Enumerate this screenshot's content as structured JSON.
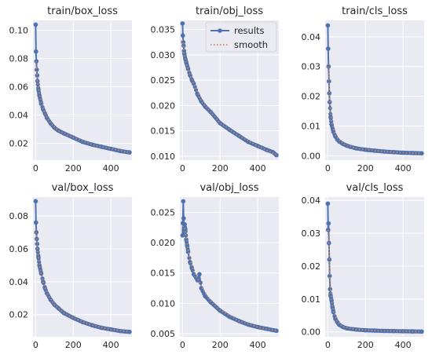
{
  "legend": {
    "results_label": "results",
    "smooth_label": "smooth"
  },
  "colors": {
    "background": "#eaeaf2",
    "grid": "#ffffff",
    "results": "#4c72b0",
    "smooth": "#dd8452"
  },
  "chart_data": [
    {
      "type": "line",
      "title": "train/box_loss",
      "xlim": [
        -14,
        512
      ],
      "ylim": [
        0.008,
        0.107
      ],
      "xticks": [
        0,
        200,
        400
      ],
      "xtick_labels": [
        "0",
        "200",
        "400"
      ],
      "yticks": [
        0.02,
        0.04,
        0.06,
        0.08,
        0.1
      ],
      "ytick_labels": [
        "0.02",
        "0.04",
        "0.06",
        "0.08",
        "0.10"
      ],
      "series": [
        {
          "name": "results",
          "x": [
            0,
            2,
            4,
            6,
            8,
            10,
            15,
            20,
            30,
            40,
            50,
            60,
            80,
            100,
            120,
            150,
            200,
            250,
            300,
            350,
            400,
            450,
            499
          ],
          "y": [
            0.104,
            0.085,
            0.078,
            0.072,
            0.068,
            0.064,
            0.058,
            0.054,
            0.048,
            0.044,
            0.041,
            0.038,
            0.034,
            0.031,
            0.029,
            0.027,
            0.024,
            0.021,
            0.019,
            0.0175,
            0.016,
            0.0145,
            0.0135
          ]
        },
        {
          "name": "smooth",
          "x": [
            0,
            5,
            10,
            20,
            30,
            50,
            80,
            120,
            200,
            300,
            400,
            499
          ],
          "y": [
            0.078,
            0.07,
            0.064,
            0.055,
            0.049,
            0.041,
            0.034,
            0.029,
            0.024,
            0.019,
            0.016,
            0.0137
          ]
        }
      ]
    },
    {
      "type": "line",
      "title": "train/obj_loss",
      "xlim": [
        -14,
        512
      ],
      "ylim": [
        0.0092,
        0.0368
      ],
      "xticks": [
        0,
        200,
        400
      ],
      "xtick_labels": [
        "0",
        "200",
        "400"
      ],
      "yticks": [
        0.01,
        0.015,
        0.02,
        0.025,
        0.03,
        0.035
      ],
      "ytick_labels": [
        "0.010",
        "0.015",
        "0.020",
        "0.025",
        "0.030",
        "0.035"
      ],
      "series": [
        {
          "name": "results",
          "x": [
            0,
            2,
            4,
            6,
            8,
            10,
            15,
            20,
            30,
            40,
            50,
            60,
            80,
            100,
            120,
            150,
            200,
            250,
            300,
            350,
            400,
            450,
            480,
            499
          ],
          "y": [
            0.0362,
            0.0338,
            0.0325,
            0.0318,
            0.0308,
            0.0302,
            0.0292,
            0.0285,
            0.0272,
            0.026,
            0.025,
            0.0243,
            0.0222,
            0.0208,
            0.0198,
            0.0187,
            0.0165,
            0.0152,
            0.014,
            0.0128,
            0.012,
            0.0112,
            0.0108,
            0.0102
          ]
        },
        {
          "name": "smooth",
          "x": [
            0,
            10,
            20,
            40,
            60,
            100,
            150,
            200,
            300,
            400,
            499
          ],
          "y": [
            0.033,
            0.03,
            0.0284,
            0.026,
            0.0243,
            0.0208,
            0.0187,
            0.0165,
            0.014,
            0.012,
            0.0103
          ]
        }
      ]
    },
    {
      "type": "line",
      "title": "train/cls_loss",
      "xlim": [
        -14,
        512
      ],
      "ylim": [
        -0.0015,
        0.0455
      ],
      "xticks": [
        0,
        200,
        400
      ],
      "xtick_labels": [
        "0",
        "200",
        "400"
      ],
      "yticks": [
        0.0,
        0.01,
        0.02,
        0.03,
        0.04
      ],
      "ytick_labels": [
        "0.00",
        "0.01",
        "0.02",
        "0.03",
        "0.04"
      ],
      "series": [
        {
          "name": "results",
          "x": [
            0,
            2,
            4,
            6,
            8,
            10,
            15,
            20,
            30,
            40,
            50,
            60,
            80,
            100,
            120,
            150,
            200,
            250,
            300,
            350,
            400,
            450,
            499
          ],
          "y": [
            0.0438,
            0.036,
            0.03,
            0.025,
            0.021,
            0.018,
            0.013,
            0.0105,
            0.008,
            0.0065,
            0.0055,
            0.0048,
            0.004,
            0.0034,
            0.003,
            0.0025,
            0.002,
            0.0017,
            0.0014,
            0.0012,
            0.001,
            0.0009,
            0.0008
          ]
        },
        {
          "name": "smooth",
          "x": [
            0,
            5,
            10,
            20,
            40,
            80,
            150,
            250,
            400,
            499
          ],
          "y": [
            0.031,
            0.025,
            0.019,
            0.0115,
            0.0068,
            0.0041,
            0.0025,
            0.0017,
            0.001,
            0.0008
          ]
        }
      ]
    },
    {
      "type": "line",
      "title": "val/box_loss",
      "xlim": [
        -14,
        512
      ],
      "ylim": [
        0.0065,
        0.0915
      ],
      "xticks": [
        0,
        200,
        400
      ],
      "xtick_labels": [
        "0",
        "200",
        "400"
      ],
      "yticks": [
        0.02,
        0.04,
        0.06,
        0.08
      ],
      "ytick_labels": [
        "0.02",
        "0.04",
        "0.06",
        "0.08"
      ],
      "series": [
        {
          "name": "results",
          "x": [
            0,
            2,
            4,
            6,
            8,
            10,
            15,
            20,
            30,
            40,
            50,
            60,
            80,
            100,
            120,
            150,
            200,
            250,
            300,
            350,
            400,
            450,
            499
          ],
          "y": [
            0.089,
            0.076,
            0.07,
            0.066,
            0.063,
            0.06,
            0.055,
            0.05,
            0.045,
            0.04,
            0.036,
            0.033,
            0.029,
            0.026,
            0.024,
            0.021,
            0.018,
            0.0155,
            0.0135,
            0.012,
            0.011,
            0.01,
            0.0095
          ]
        },
        {
          "name": "smooth",
          "x": [
            0,
            5,
            10,
            20,
            40,
            60,
            100,
            150,
            200,
            300,
            400,
            499
          ],
          "y": [
            0.072,
            0.066,
            0.06,
            0.05,
            0.04,
            0.033,
            0.026,
            0.021,
            0.018,
            0.0135,
            0.011,
            0.0095
          ]
        }
      ]
    },
    {
      "type": "line",
      "title": "val/obj_loss",
      "xlim": [
        -14,
        512
      ],
      "ylim": [
        0.0045,
        0.0275
      ],
      "xticks": [
        0,
        200,
        400
      ],
      "xtick_labels": [
        "0",
        "200",
        "400"
      ],
      "yticks": [
        0.005,
        0.01,
        0.015,
        0.02,
        0.025
      ],
      "ytick_labels": [
        "0.005",
        "0.010",
        "0.015",
        "0.020",
        "0.025"
      ],
      "series": [
        {
          "name": "results",
          "x": [
            0,
            2,
            4,
            6,
            8,
            10,
            12,
            15,
            20,
            25,
            30,
            40,
            50,
            60,
            80,
            90,
            100,
            120,
            150,
            200,
            250,
            300,
            350,
            400,
            450,
            499
          ],
          "y": [
            0.0212,
            0.0232,
            0.0268,
            0.024,
            0.0222,
            0.0218,
            0.023,
            0.0222,
            0.0205,
            0.0195,
            0.0185,
            0.0168,
            0.0158,
            0.0148,
            0.0138,
            0.0148,
            0.0125,
            0.0112,
            0.0102,
            0.0088,
            0.0078,
            0.0071,
            0.0065,
            0.0061,
            0.0058,
            0.0055
          ]
        },
        {
          "name": "smooth",
          "x": [
            0,
            10,
            20,
            30,
            40,
            60,
            80,
            100,
            150,
            200,
            300,
            400,
            499
          ],
          "y": [
            0.0228,
            0.0225,
            0.0208,
            0.0188,
            0.0172,
            0.0152,
            0.0142,
            0.0128,
            0.0103,
            0.0089,
            0.0071,
            0.0061,
            0.0055
          ]
        }
      ]
    },
    {
      "type": "line",
      "title": "val/cls_loss",
      "xlim": [
        -14,
        512
      ],
      "ylim": [
        -0.0015,
        0.041
      ],
      "xticks": [
        0,
        200,
        400
      ],
      "xtick_labels": [
        "0",
        "200",
        "400"
      ],
      "yticks": [
        0.0,
        0.01,
        0.02,
        0.03,
        0.04
      ],
      "ytick_labels": [
        "0.00",
        "0.01",
        "0.02",
        "0.03",
        "0.04"
      ],
      "series": [
        {
          "name": "results",
          "x": [
            0,
            2,
            4,
            6,
            8,
            10,
            12,
            15,
            20,
            25,
            30,
            40,
            50,
            60,
            80,
            100,
            150,
            200,
            250,
            300,
            350,
            400,
            450,
            499
          ],
          "y": [
            0.039,
            0.031,
            0.033,
            0.027,
            0.022,
            0.017,
            0.013,
            0.011,
            0.0095,
            0.0075,
            0.006,
            0.004,
            0.003,
            0.0022,
            0.0015,
            0.0011,
            0.0007,
            0.0005,
            0.0004,
            0.0003,
            0.00025,
            0.0002,
            0.00015,
            0.0001
          ]
        },
        {
          "name": "smooth",
          "x": [
            0,
            5,
            10,
            15,
            20,
            30,
            50,
            80,
            150,
            300,
            499
          ],
          "y": [
            0.031,
            0.027,
            0.019,
            0.013,
            0.0098,
            0.0063,
            0.0032,
            0.0016,
            0.0007,
            0.0003,
            0.0001
          ]
        }
      ]
    }
  ]
}
